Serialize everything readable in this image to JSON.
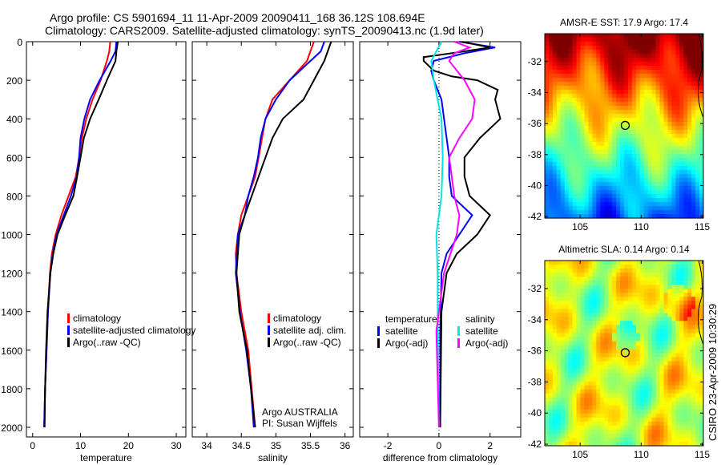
{
  "title_line1": "Argo profile: CS 5901694_11 11-Apr-2009 20090411_168 36.12S 108.694E",
  "title_line2": "Climatology: CARS2009. Satellite-adjusted climatology: synTS_20090413.nc (1.9d later)",
  "footer_credit": "CSIRO 23-Apr-2009 10:30:29",
  "chart_data": [
    {
      "type": "line",
      "id": "temperature",
      "xlabel": "temperature",
      "ylabel": "",
      "xlim": [
        -1.3,
        32
      ],
      "ylim": [
        2050,
        0
      ],
      "xticks": [
        0,
        10,
        20,
        30
      ],
      "yticks": [
        0,
        200,
        400,
        600,
        800,
        1000,
        1200,
        1400,
        1600,
        1800,
        2000
      ],
      "legend": [
        "climatology",
        "satellite-adjusted climatology",
        "Argo(..raw -QC)"
      ],
      "series": [
        {
          "name": "climatology",
          "color": "#ff0000",
          "depth": [
            0,
            50,
            100,
            200,
            300,
            400,
            500,
            600,
            700,
            800,
            900,
            1000,
            1100,
            1200,
            1400,
            1600,
            1800,
            2000
          ],
          "values": [
            16.2,
            16,
            15.5,
            14.2,
            12.5,
            11.2,
            10.3,
            9.7,
            9,
            7.5,
            6,
            4.8,
            4,
            3.6,
            3.2,
            2.9,
            2.6,
            2.4
          ]
        },
        {
          "name": "satellite-adjusted climatology",
          "color": "#0000ff",
          "depth": [
            0,
            50,
            100,
            200,
            300,
            400,
            500,
            600,
            700,
            800,
            900,
            1000,
            1100,
            1200,
            1400,
            1600,
            1800,
            2000
          ],
          "values": [
            17.5,
            17.3,
            16.3,
            14,
            12,
            10.8,
            10,
            9.7,
            9.2,
            8,
            6.5,
            5,
            4.2,
            3.7,
            3.2,
            2.9,
            2.6,
            2.4
          ]
        },
        {
          "name": "Argo(..raw -QC)",
          "color": "#000000",
          "depth": [
            0,
            50,
            100,
            200,
            300,
            400,
            500,
            600,
            700,
            800,
            900,
            1000,
            1100,
            1200,
            1400,
            1600,
            1800,
            2000
          ],
          "values": [
            17.8,
            17.5,
            17.3,
            15.5,
            13.8,
            12,
            10.7,
            10,
            9.3,
            8.5,
            6.8,
            5.2,
            4.3,
            3.7,
            3.1,
            2.8,
            2.6,
            2.5
          ]
        }
      ]
    },
    {
      "type": "line",
      "id": "salinity",
      "xlabel": "salinity",
      "xlim": [
        33.79,
        36.12
      ],
      "ylim": [
        2050,
        0
      ],
      "xticks": [
        34,
        34.5,
        35,
        35.5,
        36
      ],
      "xticklabels": [
        "34",
        "34.5",
        "35",
        "35.5",
        "36"
      ],
      "legend": [
        "climatology",
        "satellite adj. clim.",
        "Argo(..raw -QC)"
      ],
      "annotation": [
        "Argo AUSTRALIA",
        "PI: Susan Wijffels"
      ],
      "series": [
        {
          "name": "climatology",
          "color": "#ff0000",
          "depth": [
            0,
            100,
            200,
            300,
            400,
            500,
            600,
            700,
            800,
            900,
            1000,
            1100,
            1200,
            1400,
            1600,
            1800,
            2000
          ],
          "values": [
            35.55,
            35.45,
            35.2,
            34.95,
            34.85,
            34.8,
            34.75,
            34.7,
            34.6,
            34.5,
            34.45,
            34.42,
            34.43,
            34.5,
            34.6,
            34.65,
            34.7
          ]
        },
        {
          "name": "satellite adj. clim.",
          "color": "#0000ff",
          "depth": [
            0,
            50,
            100,
            200,
            300,
            400,
            500,
            600,
            700,
            800,
            900,
            1000,
            1200,
            1400,
            1600,
            1800,
            2000
          ],
          "values": [
            35.7,
            35.65,
            35.5,
            35.2,
            35.0,
            34.85,
            34.78,
            34.74,
            34.68,
            34.6,
            34.55,
            34.45,
            34.42,
            34.48,
            34.57,
            34.64,
            34.68
          ]
        },
        {
          "name": "Argo(..raw -QC)",
          "color": "#000000",
          "depth": [
            0,
            50,
            100,
            200,
            300,
            400,
            500,
            600,
            700,
            800,
            900,
            1000,
            1200,
            1400,
            1600,
            1800,
            2000
          ],
          "values": [
            35.8,
            35.75,
            35.7,
            35.55,
            35.4,
            35.1,
            34.95,
            34.85,
            34.75,
            34.65,
            34.55,
            34.47,
            34.43,
            34.47,
            34.58,
            34.64,
            34.7
          ]
        }
      ]
    },
    {
      "type": "line",
      "id": "difference",
      "xlabel": "difference from climatology",
      "xlim": [
        -3.1,
        3.2
      ],
      "ylim": [
        2050,
        0
      ],
      "xticks": [
        -2,
        0,
        2
      ],
      "legend_headers": [
        "temperature",
        "salinity"
      ],
      "legend_temperature": [
        "satellite",
        "Argo(-adj)"
      ],
      "legend_salinity": [
        "satellite",
        "Argo(-adj)"
      ],
      "series": [
        {
          "name": "temperature satellite",
          "color": "#0000ff",
          "depth": [
            0,
            30,
            60,
            100,
            150,
            200,
            300,
            400,
            500,
            600,
            700,
            800,
            900,
            1000,
            1100,
            1200,
            1500,
            2000
          ],
          "values": [
            0.8,
            2.2,
            1.0,
            -0.2,
            -0.3,
            -0.2,
            0.1,
            0.2,
            0.3,
            0.4,
            0.4,
            0.5,
            1.3,
            0.8,
            0.3,
            0.1,
            0.05,
            0.05
          ]
        },
        {
          "name": "temperature Argo(-adj)",
          "color": "#000000",
          "depth": [
            0,
            30,
            60,
            80,
            100,
            150,
            180,
            200,
            250,
            300,
            400,
            500,
            600,
            700,
            800,
            900,
            1000,
            1100,
            1200,
            1400,
            2000
          ],
          "values": [
            0.9,
            2.0,
            0.5,
            -0.6,
            -0.6,
            -0.2,
            0.5,
            1.5,
            2.3,
            2.2,
            2.4,
            1.6,
            1.0,
            1.0,
            1.2,
            2.0,
            1.5,
            0.7,
            0.3,
            0.1,
            0.05
          ]
        },
        {
          "name": "salinity satellite",
          "color": "#00e5e5",
          "depth": [
            0,
            50,
            100,
            200,
            400,
            600,
            800,
            1000,
            1200,
            1400,
            2000
          ],
          "values": [
            0.1,
            -0.1,
            -0.3,
            -0.2,
            0.1,
            0.15,
            0.1,
            -0.1,
            -0.05,
            -0.05,
            0
          ]
        },
        {
          "name": "salinity Argo(-adj)",
          "color": "#ff00ff",
          "depth": [
            0,
            30,
            60,
            100,
            200,
            300,
            400,
            500,
            600,
            700,
            800,
            900,
            1000,
            1200,
            1500,
            2000
          ],
          "values": [
            0.6,
            1.2,
            0.6,
            0.4,
            1.0,
            1.4,
            1.3,
            0.8,
            0.4,
            0.5,
            0.6,
            0.8,
            0.7,
            0.2,
            -0.1,
            0
          ]
        }
      ]
    },
    {
      "type": "heatmap",
      "id": "sst-map",
      "title": "AMSR-E SST: 17.9 Argo: 17.4",
      "xlim": [
        102.1,
        115.1
      ],
      "ylim": [
        -42.1,
        -30.2
      ],
      "xticks": [
        105,
        110,
        115
      ],
      "yticks": [
        -32,
        -34,
        -36,
        -38,
        -40,
        -42
      ],
      "marker": {
        "lon": 108.694,
        "lat": -36.12
      }
    },
    {
      "type": "heatmap",
      "id": "sla-map",
      "title": "Altimetric SLA: 0.14 Argo: 0.14",
      "xlim": [
        102.1,
        115.1
      ],
      "ylim": [
        -42.1,
        -30.2
      ],
      "xticks": [
        105,
        110,
        115
      ],
      "yticks": [
        -32,
        -34,
        -36,
        -38,
        -40,
        -42
      ],
      "marker": {
        "lon": 108.694,
        "lat": -36.12
      }
    }
  ]
}
